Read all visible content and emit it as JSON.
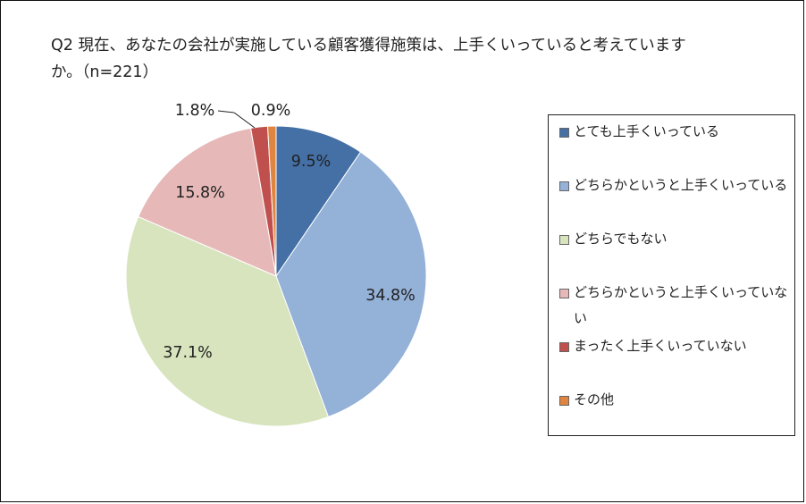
{
  "chart_data": {
    "type": "pie",
    "title": "Q2 現在、あなたの会社が実施している顧客獲得施策は、上手くいっていると考えていますか。（n=221）",
    "slices": [
      {
        "label": "とても上手くいっている",
        "value": 9.5,
        "value_label": "9.5%",
        "color": "#4470a6"
      },
      {
        "label": "どちらかというと上手くいっている",
        "value": 34.8,
        "value_label": "34.8%",
        "color": "#94b1d8"
      },
      {
        "label": "どちらでもない",
        "value": 37.1,
        "value_label": "37.1%",
        "color": "#d7e4bd"
      },
      {
        "label": "どちらかというと上手くいっていない",
        "value": 15.8,
        "value_label": "15.8%",
        "color": "#e6b9b8"
      },
      {
        "label": "まったく上手くいっていない",
        "value": 1.8,
        "value_label": "1.8%",
        "color": "#c0504d"
      },
      {
        "label": "その他",
        "value": 0.9,
        "value_label": "0.9%",
        "color": "#e0853f"
      }
    ],
    "legend_position": "right"
  }
}
